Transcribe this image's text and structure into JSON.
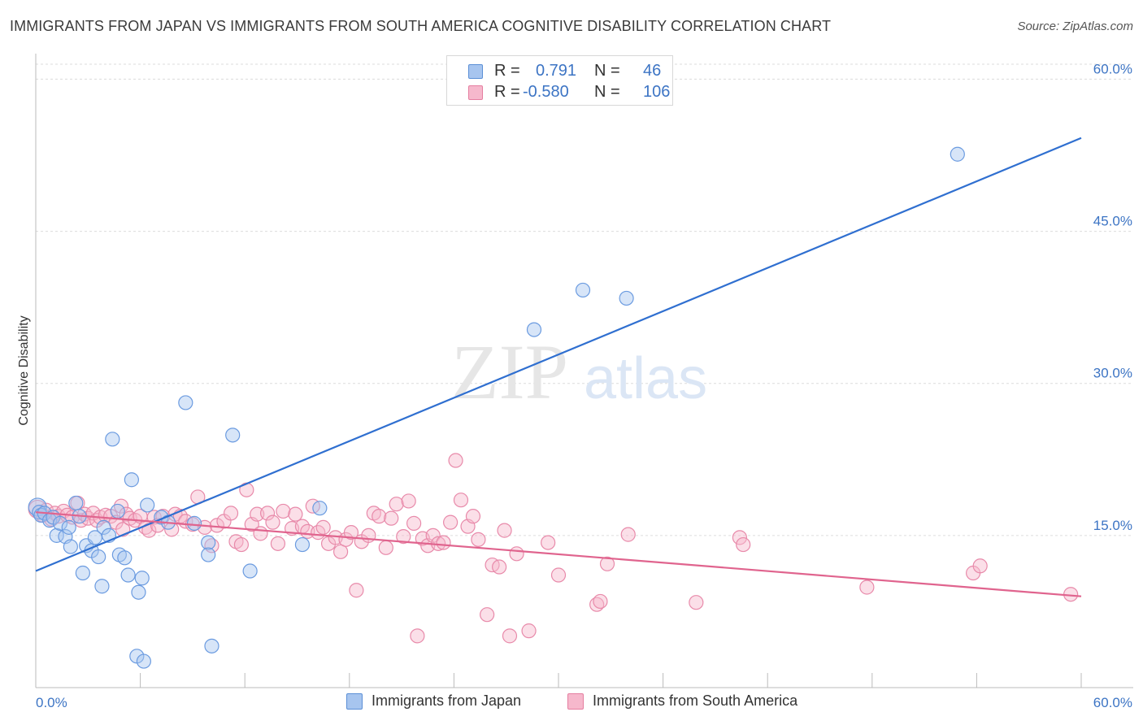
{
  "title": "IMMIGRANTS FROM JAPAN VS IMMIGRANTS FROM SOUTH AMERICA COGNITIVE DISABILITY CORRELATION CHART",
  "source": "Source: ZipAtlas.com",
  "watermark": {
    "zip": "ZIP",
    "atlas": "atlas"
  },
  "legend": {
    "rows": [
      {
        "r_label": "R =",
        "r_value": "0.791",
        "n_label": "N =",
        "n_value": "46",
        "color": "#a7c5ef",
        "border": "#5b8fd6"
      },
      {
        "r_label": "R =",
        "r_value": "-0.580",
        "n_label": "N =",
        "n_value": "106",
        "color": "#f6b8cc",
        "border": "#e57ea0"
      }
    ]
  },
  "bottom_legend": [
    {
      "label": "Immigrants from Japan",
      "color": "#a7c5ef",
      "border": "#5b8fd6"
    },
    {
      "label": "Immigrants from South America",
      "color": "#f6b8cc",
      "border": "#e57ea0"
    }
  ],
  "chart_data": {
    "type": "scatter",
    "ylabel": "Cognitive Disability",
    "xlim": [
      0,
      60
    ],
    "ylim": [
      0,
      63
    ],
    "y_ticks": [
      15,
      30,
      45,
      60
    ],
    "y_tick_labels": [
      "15.0%",
      "30.0%",
      "45.0%",
      "60.0%"
    ],
    "x_tick_labels": [
      "0.0%",
      "60.0%"
    ],
    "grid": true,
    "series": [
      {
        "name": "Immigrants from Japan",
        "color": "#6b9be0",
        "fill": "rgba(167,197,239,0.45)",
        "trend_color": "#2f6fd0",
        "trend": [
          [
            0,
            11.5
          ],
          [
            60,
            54.2
          ]
        ],
        "points": [
          [
            0.1,
            17.8
          ],
          [
            0.2,
            17.3
          ],
          [
            0.3,
            17.0
          ],
          [
            0.5,
            17.2
          ],
          [
            0.8,
            16.5
          ],
          [
            1.0,
            16.8
          ],
          [
            1.2,
            15.0
          ],
          [
            1.4,
            16.2
          ],
          [
            1.7,
            14.9
          ],
          [
            1.9,
            15.8
          ],
          [
            2.0,
            13.9
          ],
          [
            2.3,
            18.2
          ],
          [
            2.5,
            16.9
          ],
          [
            2.7,
            11.3
          ],
          [
            2.9,
            14.0
          ],
          [
            3.2,
            13.5
          ],
          [
            3.4,
            14.8
          ],
          [
            3.6,
            12.9
          ],
          [
            3.8,
            10.0
          ],
          [
            3.9,
            15.8
          ],
          [
            4.2,
            15.0
          ],
          [
            4.4,
            24.5
          ],
          [
            4.7,
            17.4
          ],
          [
            4.8,
            13.1
          ],
          [
            5.1,
            12.8
          ],
          [
            5.3,
            11.1
          ],
          [
            5.5,
            20.5
          ],
          [
            5.9,
            9.4
          ],
          [
            6.1,
            10.8
          ],
          [
            6.4,
            18.0
          ],
          [
            7.2,
            16.8
          ],
          [
            7.6,
            16.3
          ],
          [
            8.6,
            28.1
          ],
          [
            9.1,
            16.2
          ],
          [
            9.9,
            14.3
          ],
          [
            9.9,
            13.1
          ],
          [
            10.1,
            4.1
          ],
          [
            11.3,
            24.9
          ],
          [
            12.3,
            11.5
          ],
          [
            15.3,
            14.1
          ],
          [
            16.3,
            17.7
          ],
          [
            5.8,
            3.1
          ],
          [
            6.2,
            2.6
          ],
          [
            28.6,
            35.3
          ],
          [
            31.4,
            39.2
          ],
          [
            33.9,
            38.4
          ],
          [
            52.9,
            52.6
          ]
        ]
      },
      {
        "name": "Immigrants from South America",
        "color": "#e88aaa",
        "fill": "rgba(246,184,204,0.45)",
        "trend_color": "#e0648e",
        "trend": [
          [
            0,
            17.3
          ],
          [
            60,
            9.0
          ]
        ],
        "points": [
          [
            0.1,
            17.6
          ],
          [
            0.4,
            17.0
          ],
          [
            0.6,
            17.5
          ],
          [
            0.9,
            16.6
          ],
          [
            1.1,
            17.2
          ],
          [
            1.3,
            16.9
          ],
          [
            1.6,
            17.4
          ],
          [
            1.8,
            17.0
          ],
          [
            2.1,
            16.8
          ],
          [
            2.4,
            18.2
          ],
          [
            2.6,
            16.5
          ],
          [
            2.8,
            17.1
          ],
          [
            3.0,
            16.7
          ],
          [
            3.3,
            17.2
          ],
          [
            3.5,
            16.5
          ],
          [
            3.7,
            16.8
          ],
          [
            4.0,
            17.0
          ],
          [
            4.3,
            16.9
          ],
          [
            4.6,
            16.3
          ],
          [
            4.9,
            17.9
          ],
          [
            5.0,
            15.6
          ],
          [
            5.2,
            17.1
          ],
          [
            5.4,
            16.7
          ],
          [
            5.7,
            16.5
          ],
          [
            6.0,
            16.9
          ],
          [
            6.3,
            15.8
          ],
          [
            6.5,
            15.5
          ],
          [
            6.8,
            16.8
          ],
          [
            7.0,
            16.0
          ],
          [
            7.3,
            16.9
          ],
          [
            7.8,
            15.6
          ],
          [
            8.0,
            17.1
          ],
          [
            8.3,
            16.9
          ],
          [
            8.6,
            16.4
          ],
          [
            9.0,
            16.1
          ],
          [
            9.3,
            18.8
          ],
          [
            9.7,
            15.8
          ],
          [
            10.1,
            14.0
          ],
          [
            10.4,
            16.0
          ],
          [
            10.8,
            16.4
          ],
          [
            11.2,
            17.2
          ],
          [
            11.5,
            14.4
          ],
          [
            11.8,
            14.1
          ],
          [
            12.1,
            19.5
          ],
          [
            12.4,
            16.1
          ],
          [
            12.7,
            17.1
          ],
          [
            12.9,
            15.2
          ],
          [
            13.3,
            17.2
          ],
          [
            13.6,
            16.3
          ],
          [
            13.9,
            14.2
          ],
          [
            14.2,
            17.4
          ],
          [
            14.7,
            15.7
          ],
          [
            14.9,
            17.1
          ],
          [
            15.3,
            15.9
          ],
          [
            15.6,
            15.4
          ],
          [
            15.9,
            17.9
          ],
          [
            16.2,
            15.3
          ],
          [
            16.5,
            15.8
          ],
          [
            16.8,
            14.2
          ],
          [
            17.2,
            14.8
          ],
          [
            17.5,
            13.4
          ],
          [
            17.8,
            14.6
          ],
          [
            18.1,
            15.3
          ],
          [
            18.4,
            9.6
          ],
          [
            18.7,
            14.4
          ],
          [
            19.1,
            15.0
          ],
          [
            19.4,
            17.2
          ],
          [
            19.7,
            16.9
          ],
          [
            20.1,
            13.8
          ],
          [
            20.4,
            16.7
          ],
          [
            20.7,
            18.1
          ],
          [
            21.1,
            14.9
          ],
          [
            21.4,
            18.4
          ],
          [
            21.7,
            16.2
          ],
          [
            21.9,
            5.1
          ],
          [
            22.2,
            14.7
          ],
          [
            22.5,
            14.0
          ],
          [
            22.8,
            15.0
          ],
          [
            23.1,
            14.2
          ],
          [
            23.4,
            14.3
          ],
          [
            23.8,
            16.3
          ],
          [
            24.1,
            22.4
          ],
          [
            24.4,
            18.5
          ],
          [
            24.8,
            15.9
          ],
          [
            25.1,
            16.9
          ],
          [
            25.4,
            14.6
          ],
          [
            25.9,
            7.2
          ],
          [
            26.2,
            12.1
          ],
          [
            26.6,
            11.9
          ],
          [
            26.9,
            15.5
          ],
          [
            27.2,
            5.1
          ],
          [
            27.6,
            13.2
          ],
          [
            28.3,
            5.6
          ],
          [
            30.0,
            11.1
          ],
          [
            29.4,
            14.3
          ],
          [
            32.2,
            8.2
          ],
          [
            32.4,
            8.5
          ],
          [
            32.8,
            12.2
          ],
          [
            34.0,
            15.1
          ],
          [
            37.9,
            8.4
          ],
          [
            40.4,
            14.8
          ],
          [
            40.6,
            14.1
          ],
          [
            47.7,
            9.9
          ],
          [
            53.8,
            11.3
          ],
          [
            54.2,
            12.0
          ],
          [
            59.4,
            9.2
          ]
        ]
      }
    ]
  }
}
